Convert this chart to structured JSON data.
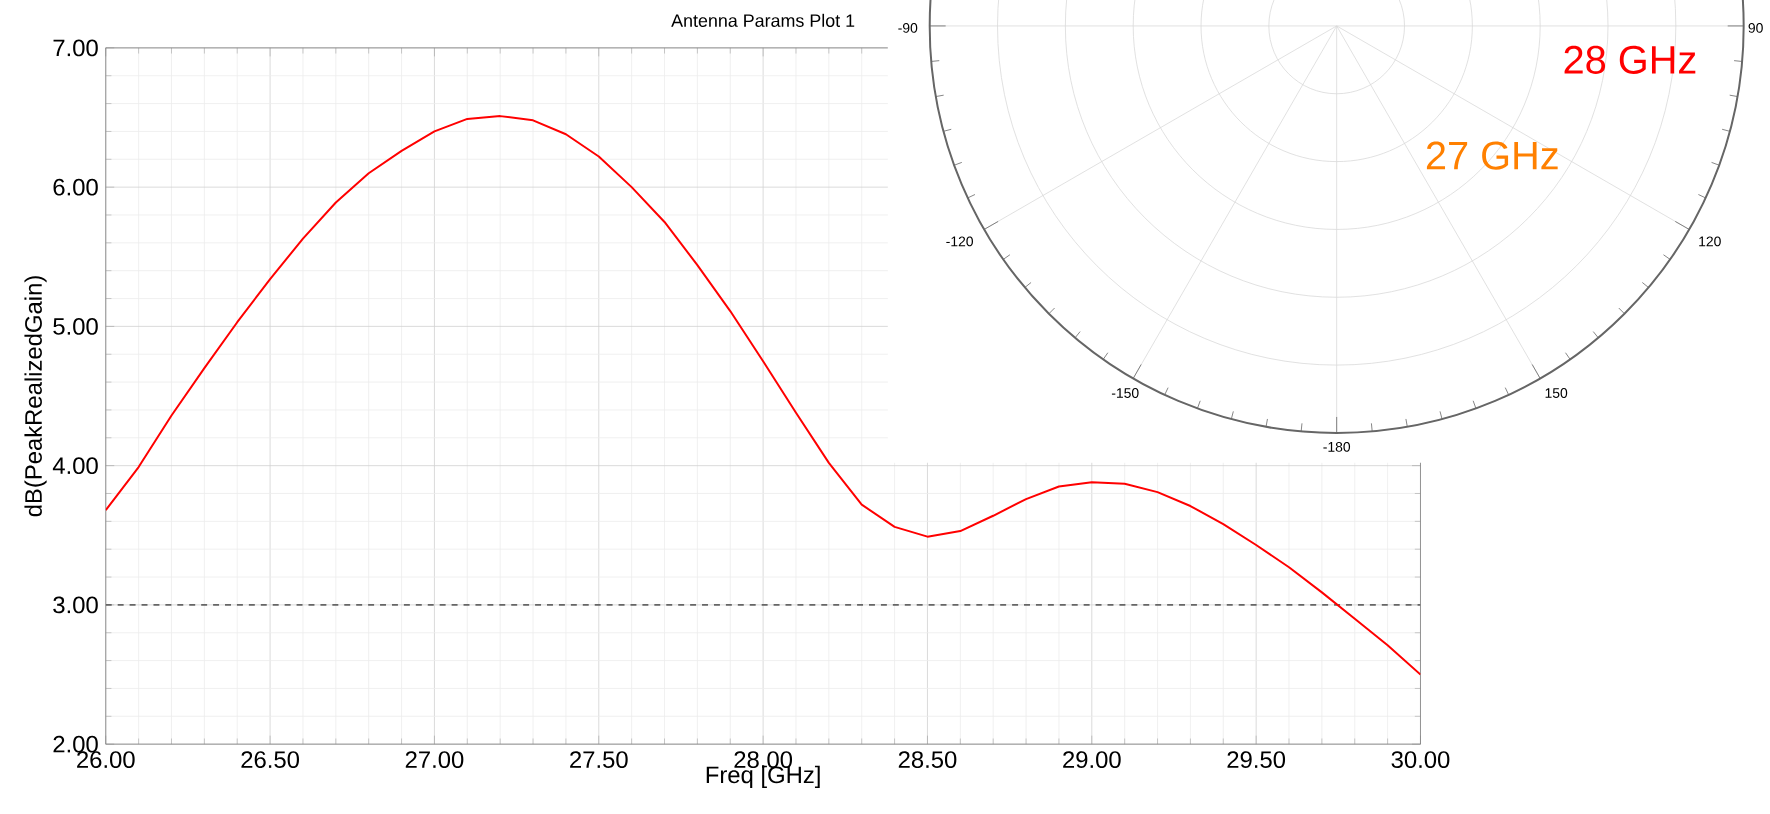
{
  "chart_data": [
    {
      "type": "line",
      "title": "Antenna Params Plot 1",
      "xlabel": "Freq [GHz]",
      "ylabel": "dB(PeakRealizedGain)",
      "x": [
        26.0,
        26.1,
        26.2,
        26.3,
        26.4,
        26.5,
        26.6,
        26.7,
        26.8,
        26.9,
        27.0,
        27.1,
        27.2,
        27.3,
        27.4,
        27.5,
        27.6,
        27.7,
        27.8,
        27.9,
        28.0,
        28.1,
        28.2,
        28.3,
        28.4,
        28.5,
        28.6,
        28.7,
        28.8,
        28.9,
        29.0,
        29.1,
        29.2,
        29.3,
        29.4,
        29.5,
        29.6,
        29.7,
        29.8,
        29.9,
        30.0
      ],
      "series": [
        {
          "color": "#ff0000",
          "values": [
            3.68,
            3.99,
            4.36,
            4.7,
            5.03,
            5.34,
            5.63,
            5.89,
            6.1,
            6.26,
            6.4,
            6.49,
            6.51,
            6.48,
            6.38,
            6.22,
            6.0,
            5.75,
            5.44,
            5.11,
            4.75,
            4.38,
            4.02,
            3.72,
            3.56,
            3.49,
            3.53,
            3.64,
            3.76,
            3.85,
            3.88,
            3.87,
            3.81,
            3.71,
            3.58,
            3.43,
            3.27,
            3.09,
            2.9,
            2.71,
            2.5
          ]
        }
      ],
      "xlim": [
        26.0,
        30.0
      ],
      "xticks": [
        {
          "value": 26,
          "label": "26.00"
        },
        {
          "value": 26.5,
          "label": "26.50"
        },
        {
          "value": 27,
          "label": "27.00"
        },
        {
          "value": 27.5,
          "label": "27.50"
        },
        {
          "value": 28,
          "label": "28.00"
        },
        {
          "value": 28.5,
          "label": "28.50"
        },
        {
          "value": 29,
          "label": "29.00"
        },
        {
          "value": 29.5,
          "label": "29.50"
        },
        {
          "value": 30,
          "label": "30.00"
        }
      ],
      "ylim": [
        2.0,
        7.0
      ],
      "yticks": [
        {
          "value": 2,
          "label": "2.00"
        },
        {
          "value": 3,
          "label": "3.00"
        },
        {
          "value": 4,
          "label": "4.00"
        },
        {
          "value": 5,
          "label": "5.00"
        },
        {
          "value": 6,
          "label": "6.00"
        },
        {
          "value": 7,
          "label": "7.00"
        }
      ],
      "ref_lines": [
        {
          "axis": "y",
          "value": 3,
          "color": "#666666",
          "line_style": "dashed"
        }
      ],
      "grid": true,
      "marker": "none",
      "line_style": "solid"
    },
    {
      "type": "other",
      "annotations": [
        "-90",
        "90",
        "-120",
        "120",
        "-150",
        "150",
        "-180",
        "28 GHz",
        "27 GHz"
      ]
    }
  ]
}
